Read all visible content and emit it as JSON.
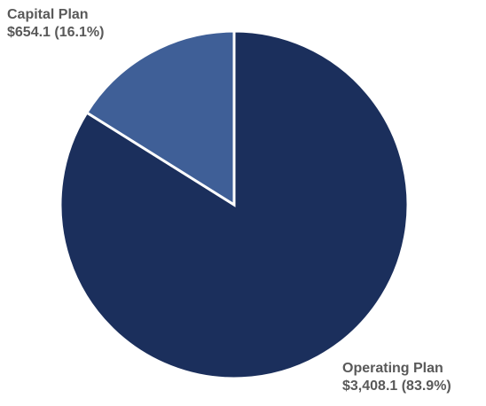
{
  "chart_data": {
    "type": "pie",
    "title": "",
    "slices": [
      {
        "name": "Capital Plan",
        "value": 654.1,
        "percent": 16.1,
        "value_text": "$654.1 (16.1%)",
        "color": "#3f5f97"
      },
      {
        "name": "Operating Plan",
        "value": 3408.1,
        "percent": 83.9,
        "value_text": "$3,408.1 (83.9%)",
        "color": "#1b2f5c"
      }
    ],
    "start_angle": "12 o'clock",
    "direction": "counterclockwise for Capital Plan",
    "legend": "none",
    "slice_border_color": "#ffffff"
  }
}
